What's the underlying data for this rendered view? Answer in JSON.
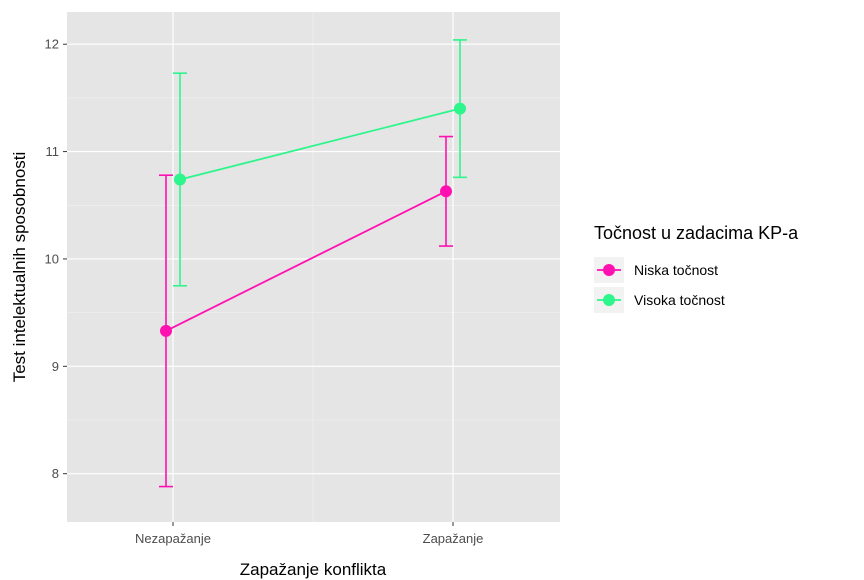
{
  "chart_data": {
    "type": "line",
    "xlabel": "Zapažanje konflikta",
    "ylabel": "Test intelektualnih sposobnosti",
    "categories": [
      "Nezapažanje",
      "Zapažanje"
    ],
    "ylim": [
      7.55,
      12.3
    ],
    "yticks": [
      8,
      9,
      10,
      11,
      12
    ],
    "grid": true,
    "panel_background": "#e5e5e5",
    "legend": {
      "title": "Točnost u zadacima KP-a",
      "position": "right"
    },
    "series": [
      {
        "name": "Niska točnost",
        "color": "#ff10b0",
        "values": [
          9.33,
          10.63
        ],
        "error_low": [
          7.88,
          10.12
        ],
        "error_high": [
          10.78,
          11.14
        ]
      },
      {
        "name": "Visoka točnost",
        "color": "#2ef58c",
        "values": [
          10.74,
          11.4
        ],
        "error_low": [
          9.75,
          10.76
        ],
        "error_high": [
          11.73,
          12.04
        ]
      }
    ]
  }
}
